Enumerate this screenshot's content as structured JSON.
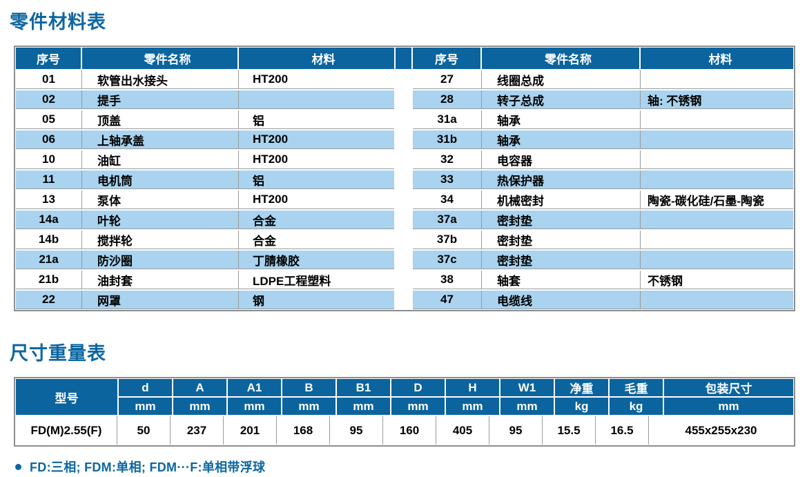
{
  "page": {
    "title_parts": "零件材料表",
    "title_dims": "尺寸重量表",
    "footnote": "FD:三相; FDM:单相; FDM···F:单相带浮球"
  },
  "colors": {
    "header_blue": "#0B649E",
    "row_light_blue": "#A9D3EF",
    "border_gray": "#9B9B9B",
    "title_blue": "#0C66A0"
  },
  "parts_table": {
    "columns": [
      "序号",
      "零件名称",
      "材料"
    ],
    "left": {
      "rows": [
        {
          "no": "01",
          "name": "软管出水接头",
          "material": "HT200"
        },
        {
          "no": "02",
          "name": "提手",
          "material": ""
        },
        {
          "no": "05",
          "name": "顶盖",
          "material": "铝"
        },
        {
          "no": "06",
          "name": "上轴承盖",
          "material": "HT200"
        },
        {
          "no": "10",
          "name": "油缸",
          "material": "HT200"
        },
        {
          "no": "11",
          "name": "电机筒",
          "material": "铝"
        },
        {
          "no": "13",
          "name": "泵体",
          "material": "HT200"
        },
        {
          "no": "14a",
          "name": "叶轮",
          "material": "合金"
        },
        {
          "no": "14b",
          "name": "搅拌轮",
          "material": "合金"
        },
        {
          "no": "21a",
          "name": "防沙圈",
          "material": "丁腈橡胶"
        },
        {
          "no": "21b",
          "name": "油封套",
          "material": "LDPE工程塑料"
        },
        {
          "no": "22",
          "name": "网罩",
          "material": "钢"
        }
      ]
    },
    "right": {
      "rows": [
        {
          "no": "27",
          "name": "线圈总成",
          "material": ""
        },
        {
          "no": "28",
          "name": "转子总成",
          "material": "轴: 不锈钢"
        },
        {
          "no": "31a",
          "name": "轴承",
          "material": ""
        },
        {
          "no": "31b",
          "name": "轴承",
          "material": ""
        },
        {
          "no": "32",
          "name": "电容器",
          "material": ""
        },
        {
          "no": "33",
          "name": "热保护器",
          "material": ""
        },
        {
          "no": "34",
          "name": "机械密封",
          "material": "陶瓷-碳化硅/石墨-陶瓷"
        },
        {
          "no": "37a",
          "name": "密封垫",
          "material": ""
        },
        {
          "no": "37b",
          "name": "密封垫",
          "material": ""
        },
        {
          "no": "37c",
          "name": "密封垫",
          "material": ""
        },
        {
          "no": "38",
          "name": "轴套",
          "material": "不锈钢"
        },
        {
          "no": "47",
          "name": "电缆线",
          "material": ""
        }
      ]
    }
  },
  "dims_table": {
    "model_header": "型号",
    "columns": [
      {
        "label": "d",
        "unit": "mm"
      },
      {
        "label": "A",
        "unit": "mm"
      },
      {
        "label": "A1",
        "unit": "mm"
      },
      {
        "label": "B",
        "unit": "mm"
      },
      {
        "label": "B1",
        "unit": "mm"
      },
      {
        "label": "D",
        "unit": "mm"
      },
      {
        "label": "H",
        "unit": "mm"
      },
      {
        "label": "W1",
        "unit": "mm"
      },
      {
        "label": "净重",
        "unit": "kg"
      },
      {
        "label": "毛重",
        "unit": "kg"
      },
      {
        "label": "包装尺寸",
        "unit": "mm"
      }
    ],
    "row": {
      "model": "FD(M)2.55(F)",
      "values": [
        "50",
        "237",
        "201",
        "168",
        "95",
        "160",
        "405",
        "95",
        "15.5",
        "16.5",
        "455x255x230"
      ]
    }
  }
}
